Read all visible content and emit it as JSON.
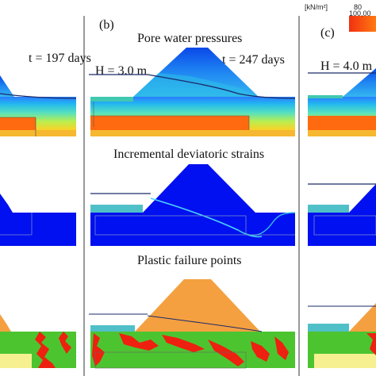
{
  "panels": {
    "a": {
      "time_label": "t = 197 days"
    },
    "b": {
      "tag": "(b)",
      "time_label": "t = 247 days",
      "water_level_label": "H = 3.0 m",
      "rows": {
        "pore": "Pore water pressures",
        "strain": "Incremental deviatoric strains",
        "plastic": "Plastic failure points"
      }
    },
    "c": {
      "tag": "(c)",
      "water_level_label": "H = 4.0 m"
    }
  },
  "legend": {
    "unit": "[kN/m²]",
    "tick_top": "80",
    "tick_bottom": "100,00"
  },
  "colors": {
    "orange_band": "#ff6a10",
    "blue_strain": "#0010f0",
    "plastic_orange": "#f4a040",
    "plastic_green": "#4cc430",
    "plastic_red": "#ee2010"
  }
}
